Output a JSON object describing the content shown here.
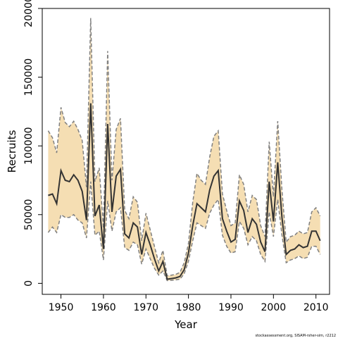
{
  "chart_data": {
    "type": "line",
    "title": "",
    "xlabel": "Year",
    "ylabel": "Recruits",
    "xlim": [
      1945.6,
      2013.2
    ],
    "ylim": [
      -8000,
      200000
    ],
    "x_ticks": [
      1950,
      1960,
      1970,
      1980,
      1990,
      2000,
      2010
    ],
    "y_ticks": [
      0,
      50000,
      100000,
      150000,
      200000
    ],
    "x_tick_labels": [
      "1950",
      "1960",
      "1970",
      "1980",
      "1990",
      "2000",
      "2010"
    ],
    "y_tick_labels": [
      "0",
      "50000",
      "100000",
      "150000",
      "200000"
    ],
    "grid": false,
    "legend": "none",
    "x": [
      1947,
      1948,
      1949,
      1950,
      1951,
      1952,
      1953,
      1954,
      1955,
      1956,
      1957,
      1958,
      1959,
      1960,
      1961,
      1962,
      1963,
      1964,
      1965,
      1966,
      1967,
      1968,
      1969,
      1970,
      1971,
      1972,
      1973,
      1974,
      1975,
      1976,
      1977,
      1978,
      1979,
      1980,
      1981,
      1982,
      1983,
      1984,
      1985,
      1986,
      1987,
      1988,
      1989,
      1990,
      1991,
      1992,
      1993,
      1994,
      1995,
      1996,
      1997,
      1998,
      1999,
      2000,
      2001,
      2002,
      2003,
      2004,
      2005,
      2006,
      2007,
      2008,
      2009,
      2010,
      2011
    ],
    "series": [
      {
        "role": "estimate",
        "values": [
          64000,
          65000,
          58000,
          82000,
          75000,
          74000,
          79000,
          75000,
          67000,
          46000,
          131000,
          49000,
          57000,
          25000,
          116000,
          52000,
          78000,
          83000,
          36000,
          33000,
          44000,
          41000,
          21000,
          37000,
          28000,
          18000,
          9000,
          16000,
          3000,
          3500,
          4000,
          5000,
          10000,
          22000,
          42000,
          58000,
          55000,
          52000,
          68000,
          78000,
          82000,
          47000,
          38000,
          30000,
          32000,
          60000,
          53000,
          37000,
          47000,
          43000,
          30000,
          23000,
          74000,
          45000,
          88000,
          48000,
          21000,
          24000,
          25000,
          28000,
          26000,
          27000,
          38000,
          38000,
          31000
        ]
      },
      {
        "role": "lower bound",
        "values": [
          37000,
          41000,
          37000,
          50000,
          48000,
          48000,
          50000,
          46000,
          44000,
          33000,
          74000,
          35000,
          38000,
          17000,
          60000,
          38000,
          52000,
          55000,
          26000,
          24000,
          30000,
          28000,
          14000,
          25000,
          18000,
          11000,
          6000,
          9000,
          2000,
          2200,
          2500,
          3000,
          7000,
          16000,
          31000,
          44000,
          42000,
          40000,
          51000,
          57000,
          61000,
          35000,
          27000,
          22000,
          23000,
          45000,
          40000,
          28000,
          34000,
          31000,
          21000,
          16000,
          52000,
          34000,
          61000,
          35000,
          15000,
          17000,
          18000,
          20000,
          18000,
          19000,
          27000,
          27000,
          21000
        ]
      },
      {
        "role": "upper bound",
        "values": [
          111000,
          106000,
          95000,
          128000,
          117000,
          114000,
          118000,
          112000,
          104000,
          70000,
          193000,
          74000,
          84000,
          40000,
          169000,
          75000,
          112000,
          120000,
          53000,
          47000,
          63000,
          59000,
          31000,
          51000,
          39000,
          27000,
          15000,
          24000,
          5500,
          6000,
          6500,
          8000,
          15000,
          29000,
          59000,
          80000,
          75000,
          72000,
          92000,
          107000,
          111000,
          65000,
          53000,
          42000,
          44000,
          79000,
          72000,
          52000,
          64000,
          61000,
          42000,
          34000,
          103000,
          63000,
          118000,
          68000,
          30000,
          34000,
          35000,
          38000,
          36000,
          37000,
          52000,
          55000,
          49000
        ]
      }
    ],
    "colors": {
      "band_fill": "#f5deb3",
      "band_edge": "#808080",
      "estimate_line": "#333333",
      "axis": "#000000"
    },
    "credit": "stockassessment.org, SISAM-rsher-sim, r2212"
  }
}
